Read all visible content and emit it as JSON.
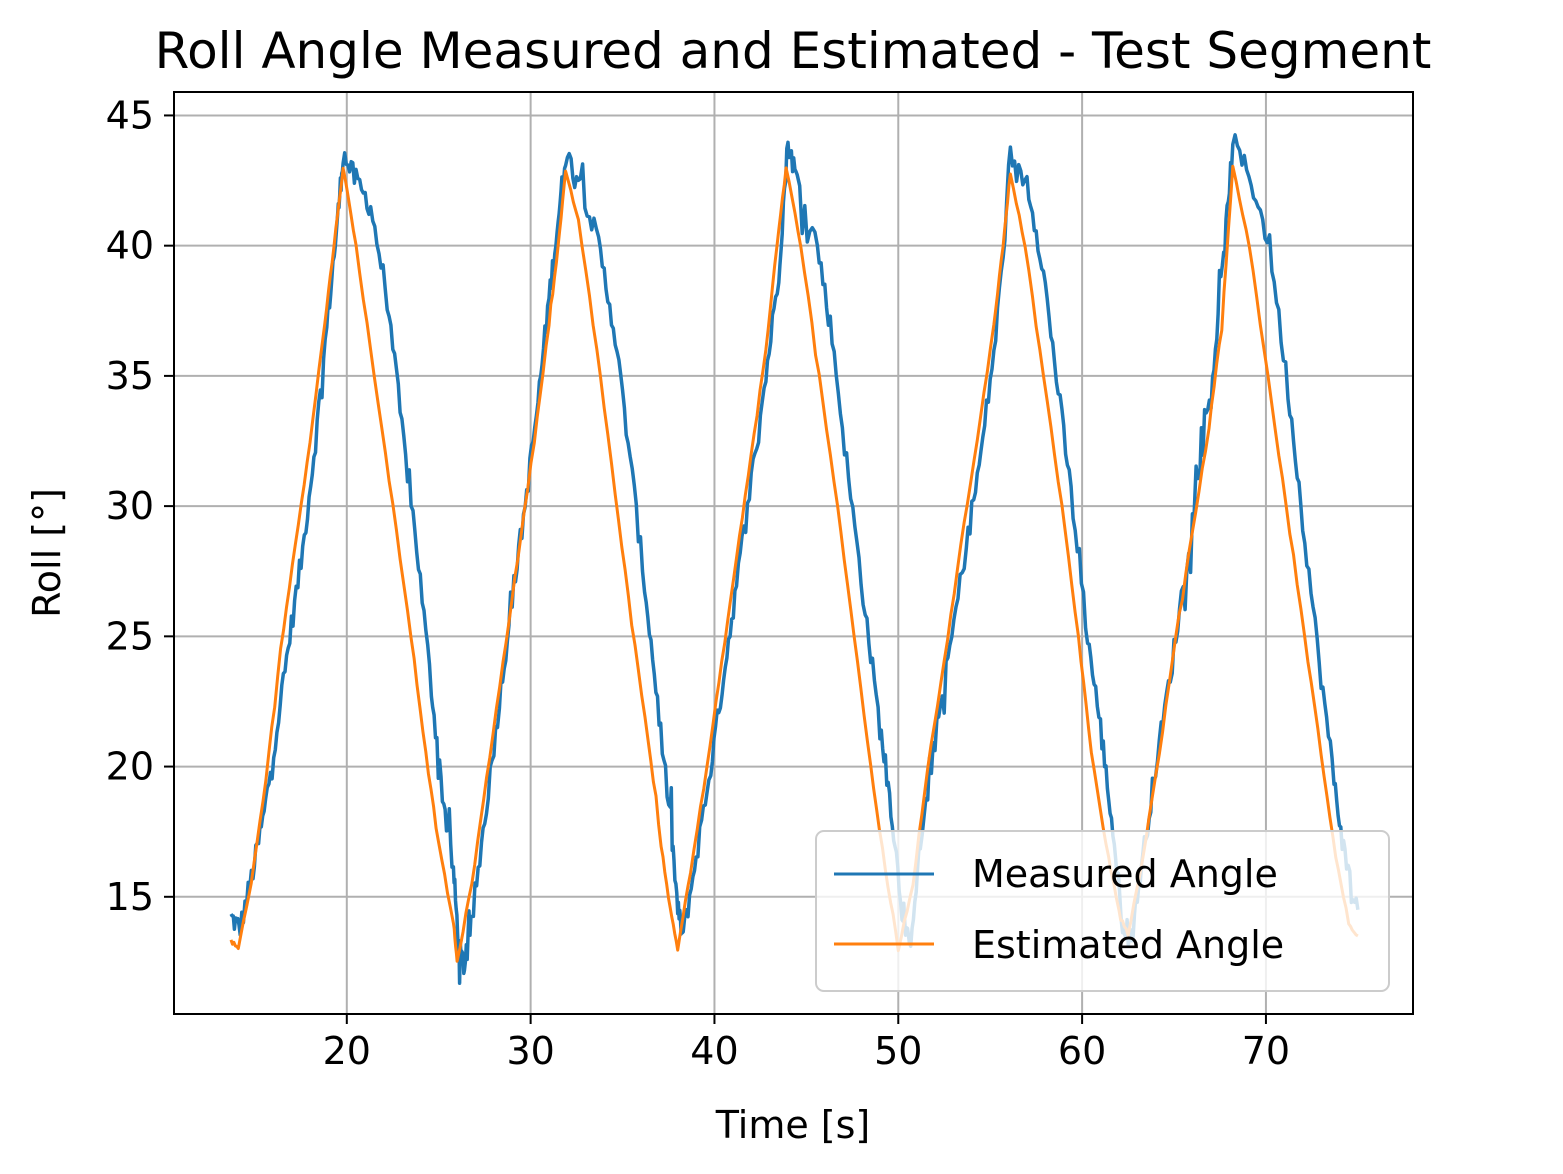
{
  "chart_data": {
    "type": "line",
    "title": "Roll Angle Measured and Estimated - Test Segment",
    "xlabel": "Time [s]",
    "ylabel": "Roll [°]",
    "xlim": [
      10.6,
      78.0
    ],
    "ylim": [
      10.5,
      45.9
    ],
    "xticks": [
      20,
      30,
      40,
      50,
      60,
      70
    ],
    "yticks": [
      15,
      20,
      25,
      30,
      35,
      40,
      45
    ],
    "grid": true,
    "legend_position": "lower-right",
    "series": [
      {
        "name": "Measured Angle",
        "color": "#1f77b4",
        "keypoints": [
          [
            13.7,
            14.2
          ],
          [
            14.2,
            13.8
          ],
          [
            14.9,
            16.0
          ],
          [
            15.5,
            18.2
          ],
          [
            16.2,
            21.5
          ],
          [
            16.9,
            25.0
          ],
          [
            17.6,
            28.3
          ],
          [
            18.3,
            32.5
          ],
          [
            19.0,
            37.5
          ],
          [
            19.5,
            41.0
          ],
          [
            19.8,
            43.5
          ],
          [
            20.5,
            42.5
          ],
          [
            21.3,
            41.5
          ],
          [
            22.2,
            38.0
          ],
          [
            23.0,
            33.0
          ],
          [
            23.8,
            28.5
          ],
          [
            24.6,
            23.0
          ],
          [
            25.2,
            19.0
          ],
          [
            25.8,
            16.0
          ],
          [
            26.1,
            13.0
          ],
          [
            26.4,
            12.3
          ],
          [
            26.8,
            14.0
          ],
          [
            27.5,
            18.0
          ],
          [
            28.3,
            22.5
          ],
          [
            29.0,
            26.5
          ],
          [
            29.7,
            30.0
          ],
          [
            30.4,
            34.0
          ],
          [
            31.0,
            38.0
          ],
          [
            31.5,
            41.0
          ],
          [
            31.9,
            43.5
          ],
          [
            32.7,
            42.5
          ],
          [
            33.7,
            40.0
          ],
          [
            34.5,
            37.0
          ],
          [
            35.3,
            32.5
          ],
          [
            36.2,
            27.0
          ],
          [
            36.9,
            22.5
          ],
          [
            37.6,
            18.0
          ],
          [
            38.0,
            14.5
          ],
          [
            38.3,
            13.5
          ],
          [
            39.0,
            16.5
          ],
          [
            39.8,
            20.0
          ],
          [
            40.5,
            23.5
          ],
          [
            41.2,
            27.0
          ],
          [
            42.0,
            31.0
          ],
          [
            42.8,
            35.0
          ],
          [
            43.5,
            39.0
          ],
          [
            44.0,
            44.0
          ],
          [
            44.5,
            42.5
          ],
          [
            45.6,
            40.0
          ],
          [
            46.4,
            36.5
          ],
          [
            47.3,
            31.0
          ],
          [
            48.2,
            26.0
          ],
          [
            49.0,
            21.5
          ],
          [
            49.6,
            18.5
          ],
          [
            50.2,
            14.5
          ],
          [
            50.6,
            13.0
          ],
          [
            51.2,
            17.0
          ],
          [
            52.0,
            21.0
          ],
          [
            52.8,
            24.5
          ],
          [
            53.7,
            28.5
          ],
          [
            54.5,
            32.0
          ],
          [
            55.3,
            36.5
          ],
          [
            56.1,
            43.0
          ],
          [
            57.0,
            42.5
          ],
          [
            57.8,
            39.5
          ],
          [
            58.6,
            35.0
          ],
          [
            59.4,
            30.5
          ],
          [
            60.3,
            25.0
          ],
          [
            61.0,
            21.5
          ],
          [
            61.6,
            18.0
          ],
          [
            62.2,
            14.0
          ],
          [
            62.7,
            13.5
          ],
          [
            63.3,
            16.5
          ],
          [
            64.0,
            20.0
          ],
          [
            64.8,
            23.5
          ],
          [
            65.6,
            27.5
          ],
          [
            66.4,
            31.5
          ],
          [
            67.1,
            35.0
          ],
          [
            67.7,
            39.5
          ],
          [
            68.2,
            44.0
          ],
          [
            69.2,
            42.5
          ],
          [
            70.2,
            40.0
          ],
          [
            71.2,
            34.5
          ],
          [
            72.0,
            29.5
          ],
          [
            72.9,
            24.0
          ],
          [
            73.7,
            19.5
          ],
          [
            74.3,
            16.5
          ],
          [
            75.0,
            14.5
          ]
        ]
      },
      {
        "name": "Estimated Angle",
        "color": "#ff7f0e",
        "keypoints": [
          [
            13.7,
            13.3
          ],
          [
            14.1,
            13.0
          ],
          [
            14.8,
            15.5
          ],
          [
            15.6,
            19.5
          ],
          [
            16.4,
            24.5
          ],
          [
            17.2,
            28.5
          ],
          [
            18.0,
            32.5
          ],
          [
            18.8,
            37.0
          ],
          [
            19.3,
            40.0
          ],
          [
            19.8,
            43.0
          ],
          [
            20.5,
            40.0
          ],
          [
            21.5,
            35.0
          ],
          [
            22.5,
            30.0
          ],
          [
            23.5,
            25.0
          ],
          [
            24.3,
            20.5
          ],
          [
            25.0,
            17.0
          ],
          [
            25.8,
            14.0
          ],
          [
            26.0,
            12.5
          ],
          [
            26.8,
            15.5
          ],
          [
            27.6,
            19.5
          ],
          [
            28.5,
            24.0
          ],
          [
            29.3,
            28.0
          ],
          [
            30.2,
            32.5
          ],
          [
            31.0,
            37.0
          ],
          [
            31.5,
            40.0
          ],
          [
            31.9,
            42.8
          ],
          [
            32.6,
            41.0
          ],
          [
            33.6,
            36.0
          ],
          [
            34.6,
            30.5
          ],
          [
            35.5,
            25.5
          ],
          [
            36.4,
            21.0
          ],
          [
            37.1,
            17.0
          ],
          [
            37.6,
            14.5
          ],
          [
            38.0,
            13.0
          ],
          [
            38.7,
            16.0
          ],
          [
            39.6,
            20.0
          ],
          [
            40.4,
            24.0
          ],
          [
            41.2,
            28.0
          ],
          [
            42.0,
            32.0
          ],
          [
            42.8,
            36.0
          ],
          [
            43.4,
            40.0
          ],
          [
            43.9,
            43.0
          ],
          [
            44.7,
            40.0
          ],
          [
            45.7,
            35.0
          ],
          [
            46.7,
            30.0
          ],
          [
            47.6,
            25.0
          ],
          [
            48.5,
            20.0
          ],
          [
            49.3,
            16.0
          ],
          [
            50.0,
            13.0
          ],
          [
            50.8,
            15.5
          ],
          [
            51.6,
            20.0
          ],
          [
            52.5,
            24.0
          ],
          [
            53.4,
            28.5
          ],
          [
            54.3,
            32.5
          ],
          [
            55.2,
            37.0
          ],
          [
            55.7,
            40.0
          ],
          [
            56.1,
            42.8
          ],
          [
            56.9,
            40.0
          ],
          [
            57.9,
            35.0
          ],
          [
            58.9,
            30.0
          ],
          [
            59.8,
            25.0
          ],
          [
            60.5,
            20.5
          ],
          [
            61.3,
            17.0
          ],
          [
            62.0,
            14.5
          ],
          [
            62.5,
            13.5
          ],
          [
            63.3,
            16.5
          ],
          [
            64.2,
            20.5
          ],
          [
            65.1,
            25.0
          ],
          [
            66.0,
            29.0
          ],
          [
            66.9,
            33.0
          ],
          [
            67.6,
            37.0
          ],
          [
            68.2,
            43.0
          ],
          [
            69.1,
            40.0
          ],
          [
            70.1,
            35.0
          ],
          [
            71.1,
            30.0
          ],
          [
            72.1,
            25.0
          ],
          [
            73.0,
            20.5
          ],
          [
            73.8,
            16.5
          ],
          [
            74.5,
            14.0
          ],
          [
            75.0,
            13.5
          ]
        ]
      }
    ]
  }
}
